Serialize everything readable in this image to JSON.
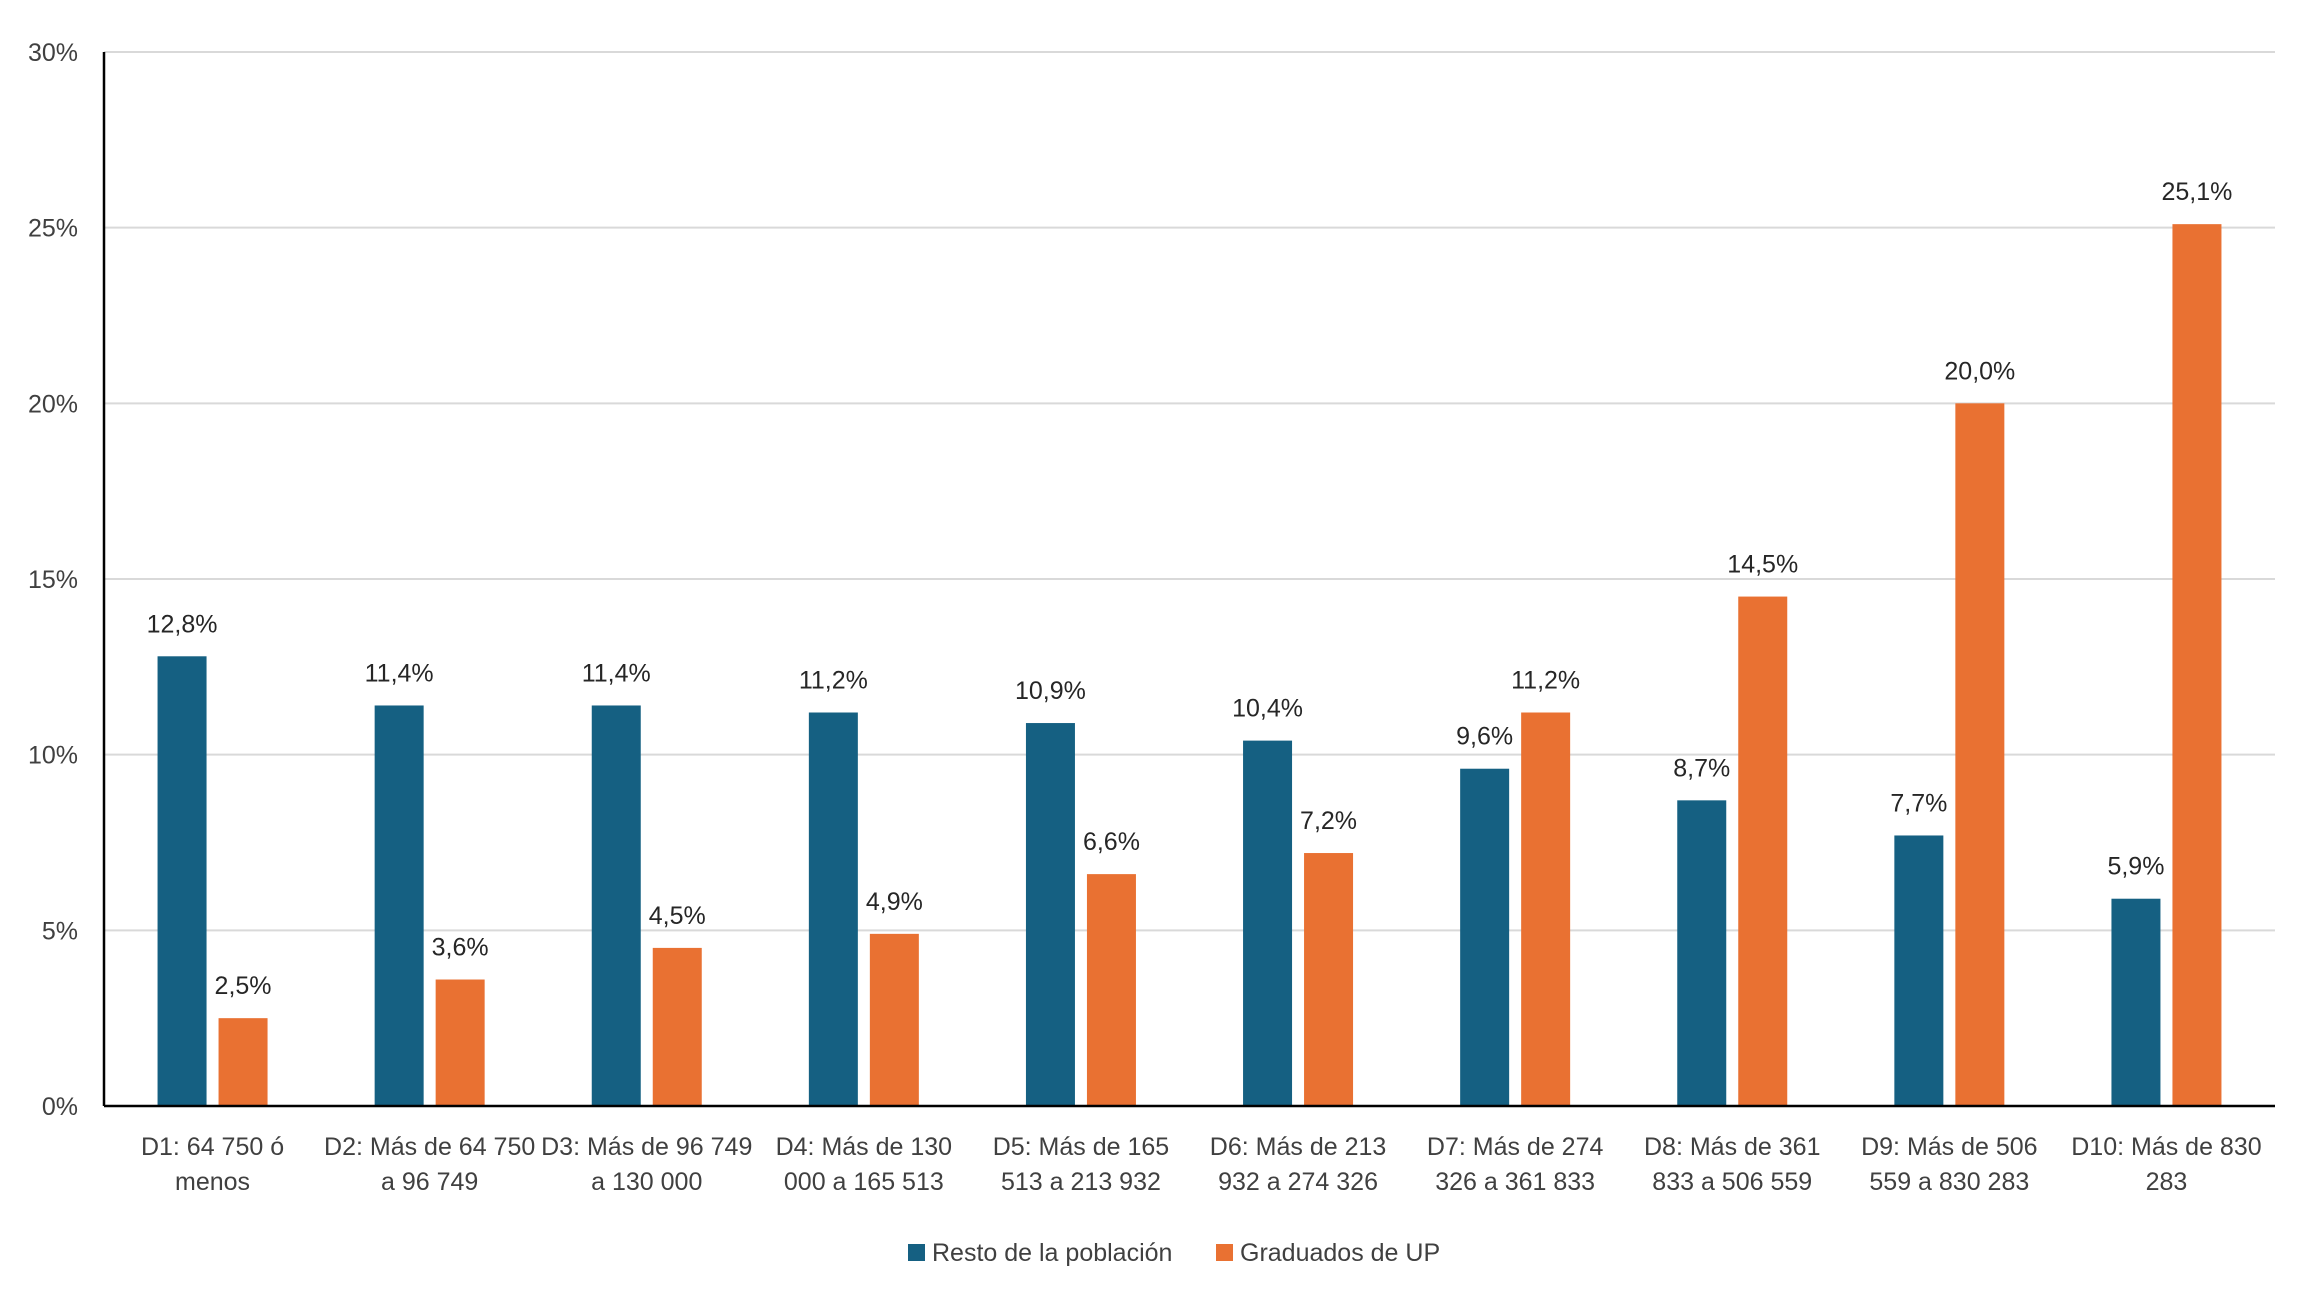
{
  "chart_data": {
    "type": "bar",
    "title": "",
    "xlabel": "",
    "ylabel": "",
    "ylim": [
      0,
      30
    ],
    "yticks": [
      "0%",
      "5%",
      "10%",
      "15%",
      "20%",
      "25%",
      "30%"
    ],
    "grid": true,
    "legend_position": "bottom",
    "categories": [
      [
        "D1: 64 750 ó",
        "menos"
      ],
      [
        "D2: Más de 64 750",
        "a 96 749"
      ],
      [
        "D3: Más de 96 749",
        "a 130 000"
      ],
      [
        "D4: Más de 130",
        "000 a 165 513"
      ],
      [
        "D5: Más de 165",
        "513 a 213 932"
      ],
      [
        "D6: Más de 213",
        "932 a 274 326"
      ],
      [
        "D7: Más de 274",
        "326 a 361 833"
      ],
      [
        "D8: Más de 361",
        "833 a 506 559"
      ],
      [
        "D9: Más de 506",
        "559 a 830 283"
      ],
      [
        "D10: Más de 830",
        "283"
      ]
    ],
    "series": [
      {
        "name": "Resto de la población",
        "color": "#156082",
        "values": [
          12.8,
          11.4,
          11.4,
          11.2,
          10.9,
          10.4,
          9.6,
          8.7,
          7.7,
          5.9
        ],
        "labels": [
          "12,8%",
          "11,4%",
          "11,4%",
          "11,2%",
          "10,9%",
          "10,4%",
          "9,6%",
          "8,7%",
          "7,7%",
          "5,9%"
        ]
      },
      {
        "name": "Graduados de UP",
        "color": "#E97132",
        "values": [
          2.5,
          3.6,
          4.5,
          4.9,
          6.6,
          7.2,
          11.2,
          14.5,
          20.0,
          25.1
        ],
        "labels": [
          "2,5%",
          "3,6%",
          "4,5%",
          "4,9%",
          "6,6%",
          "7,2%",
          "11,2%",
          "14,5%",
          "20,0%",
          "25,1%"
        ]
      }
    ]
  }
}
